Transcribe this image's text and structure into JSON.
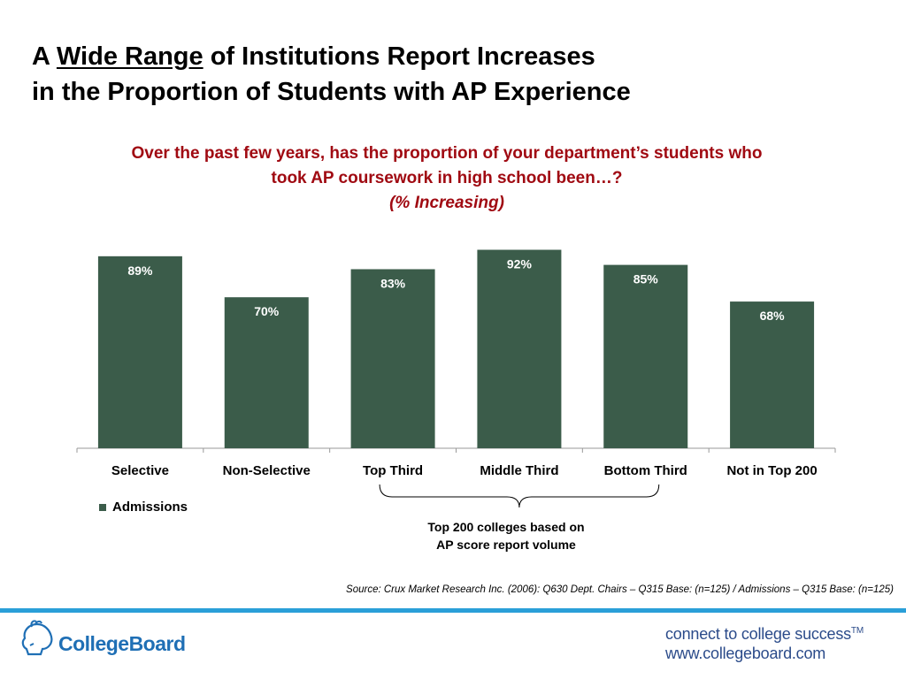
{
  "slide": {
    "title_prefix": "A",
    "title_emphasis": "Wide Range",
    "title_rest_line1": "of Institutions Report Increases",
    "title_line2": "in the Proportion of Students with AP Experience",
    "question_line1": "Over the past few years, has the proportion of your department’s students who",
    "question_line2": "took AP coursework in high school been…?",
    "question_line3": "(% Increasing)",
    "brace_note_line1": "Top 200 colleges based on",
    "brace_note_line2": "AP score report volume",
    "source": "Source: Crux Market Research Inc. (2006): Q630 Dept. Chairs – Q315 Base: (n=125) / Admissions – Q315 Base: (n=125)",
    "logo_text": "CollegeBoard",
    "tagline_line1": "connect to college success",
    "tagline_tm": "TM",
    "tagline_line2": "www.collegeboard.com"
  },
  "colors": {
    "bar": "#3b5c4a",
    "title_red": "#a00a12",
    "footer_blue": "#2a9fd8",
    "logo_blue": "#1f6fb5",
    "tagline_blue": "#2b4b8a"
  },
  "chart_data": {
    "type": "bar",
    "categories": [
      "Selective",
      "Non-Selective",
      "Top Third",
      "Middle Third",
      "Bottom Third",
      "Not in Top 200"
    ],
    "series": [
      {
        "name": "Admissions",
        "values": [
          89,
          70,
          83,
          92,
          85,
          68
        ]
      }
    ],
    "data_labels": [
      "89%",
      "70%",
      "83%",
      "92%",
      "85%",
      "68%"
    ],
    "ylim": [
      0,
      100
    ],
    "grid": false,
    "legend": "bottom-left",
    "bracket_groups": [
      "Top Third",
      "Middle Third",
      "Bottom Third"
    ]
  }
}
